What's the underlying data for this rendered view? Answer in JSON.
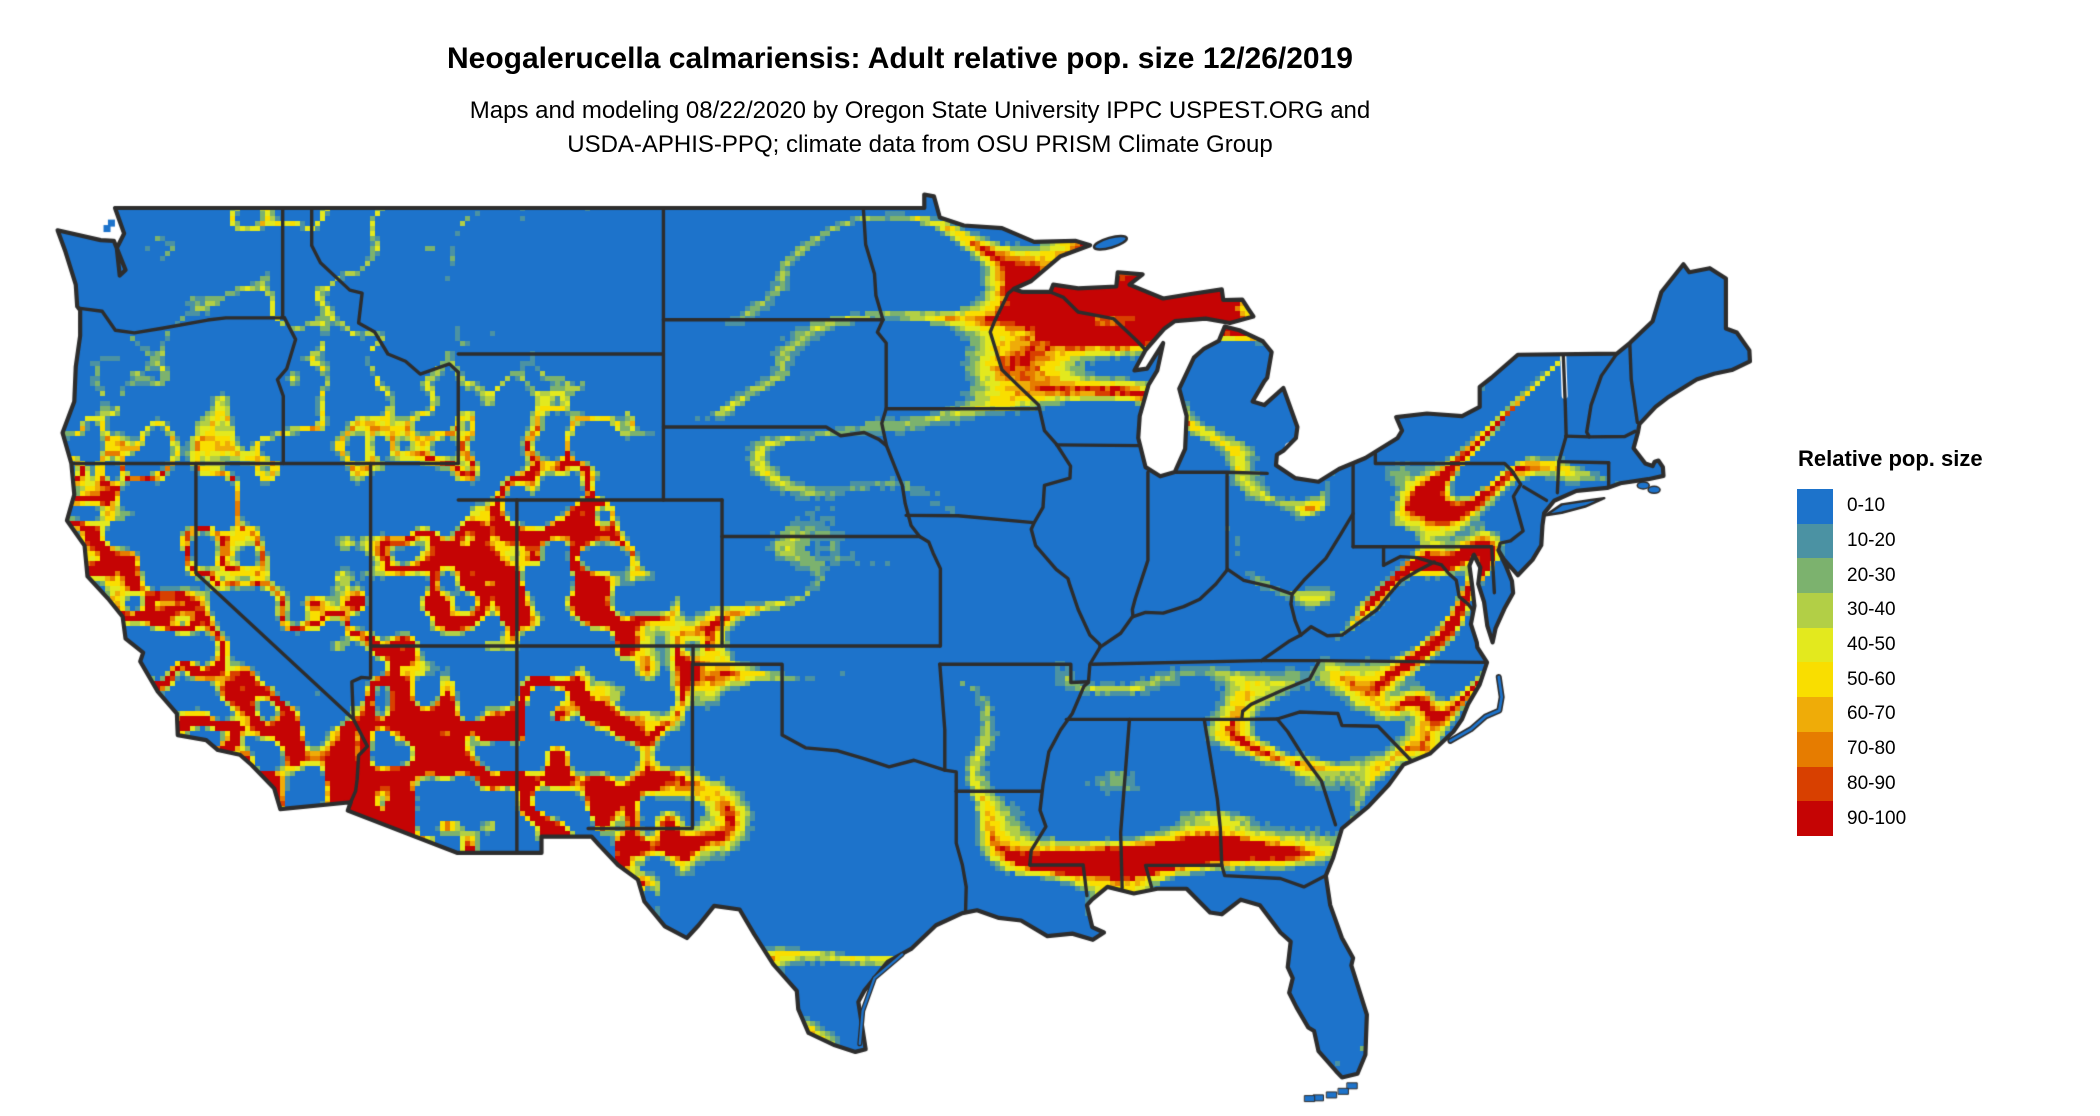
{
  "header": {
    "title": "Neogalerucella calmariensis: Adult relative pop. size 12/26/2019",
    "subtitle_line1": "Maps and modeling 08/22/2020 by Oregon State University IPPC USPEST.ORG and",
    "subtitle_line2": "USDA-APHIS-PPQ; climate data from OSU PRISM Climate Group"
  },
  "legend": {
    "title": "Relative pop. size",
    "items": [
      {
        "label": "0-10",
        "color": "#1D73CB"
      },
      {
        "label": "10-20",
        "color": "#4B92A3"
      },
      {
        "label": "20-30",
        "color": "#7CB26E"
      },
      {
        "label": "30-40",
        "color": "#B2CF46"
      },
      {
        "label": "40-50",
        "color": "#E3E91E"
      },
      {
        "label": "50-60",
        "color": "#F9DE00"
      },
      {
        "label": "60-70",
        "color": "#EFAC08"
      },
      {
        "label": "70-80",
        "color": "#E67C00"
      },
      {
        "label": "80-90",
        "color": "#D84000"
      },
      {
        "label": "90-100",
        "color": "#C50404"
      }
    ]
  },
  "map": {
    "border_color": "#2D2D2D",
    "water_color": "#FFFFFF",
    "background_color": "#FFFFFF"
  }
}
